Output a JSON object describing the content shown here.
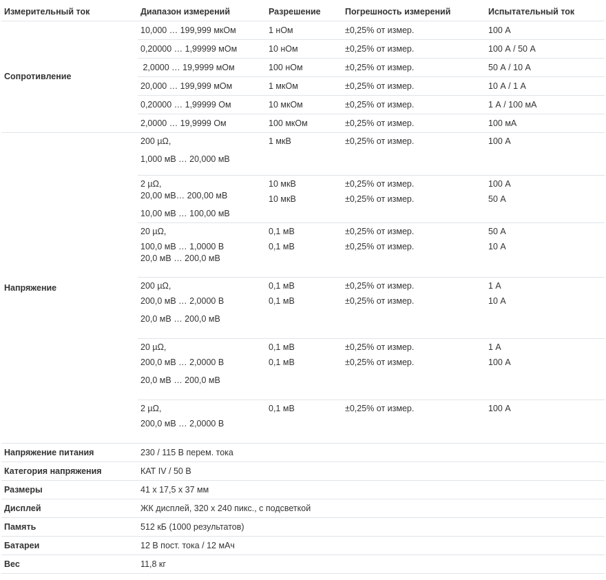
{
  "headers": {
    "quantity": "Измерительный ток",
    "range": "Диапазон измерений",
    "resolution": "Разрешение",
    "accuracy": "Погрешность измерений",
    "test_current": "Испытательный ток"
  },
  "resistance": {
    "label": "Сопротивление",
    "rows": [
      {
        "range": "10,000 … 199,999 мкОм",
        "resolution": "1 нОм",
        "accuracy": "±0,25% от измер.",
        "current": "100 А"
      },
      {
        "range": "0,20000 … 1,99999 мОм",
        "resolution": "10 нОм",
        "accuracy": "±0,25% от измер.",
        "current": "100 А / 50 А"
      },
      {
        "range": " 2,0000 … 19,9999 мОм",
        "resolution": "100 нОм",
        "accuracy": "±0,25% от измер.",
        "current": "50 А / 10 А"
      },
      {
        "range": "20,000 … 199,999 мОм",
        "resolution": "1 мкОм",
        "accuracy": "±0,25% от измер.",
        "current": "10 А / 1 А"
      },
      {
        "range": "0,20000 … 1,99999 Ом",
        "resolution": "10 мкОм",
        "accuracy": "±0,25% от измер.",
        "current": "1 А / 100 мА"
      },
      {
        "range": "2,0000 … 19,9999 Ом",
        "resolution": "100 мкОм",
        "accuracy": "±0,25% от измер.",
        "current": "100 мА"
      }
    ]
  },
  "voltage": {
    "label": "Напряжение",
    "groups": [
      {
        "range": [
          "200 µΩ,",
          "1,000 мВ … 20,000 мВ"
        ],
        "resolution": [
          "1 мкВ"
        ],
        "accuracy": [
          "±0,25% от измер."
        ],
        "current": [
          "100 А"
        ]
      },
      {
        "range": [
          "2 µΩ,",
          "20,00 мВ… 200,00 мВ",
          "10,00 мВ … 100,00 мВ"
        ],
        "resolution": [
          "10 мкВ",
          "10 мкВ"
        ],
        "accuracy": [
          "±0,25% от измер.",
          "±0,25% от измер."
        ],
        "current": [
          "100 А",
          "50 А"
        ]
      },
      {
        "range": [
          "20 µΩ,",
          "100,0 мВ … 1,0000 В",
          "20,0 мВ … 200,0 мВ"
        ],
        "resolution": [
          "0,1 мВ",
          "0,1 мВ"
        ],
        "accuracy": [
          "±0,25% от измер.",
          "±0,25% от измер."
        ],
        "current": [
          "50 А",
          "10 А"
        ]
      },
      {
        "range": [
          "200 µΩ,",
          "200,0 мВ … 2,0000 В",
          "20,0 мВ … 200,0 мВ"
        ],
        "resolution": [
          "0,1 мВ",
          "0,1 мВ"
        ],
        "accuracy": [
          "±0,25% от измер.",
          "±0,25% от измер."
        ],
        "current": [
          "1 А",
          "10 А"
        ]
      },
      {
        "range": [
          "20 µΩ,",
          "200,0 мВ … 2,0000 В",
          "20,0 мВ … 200,0 мВ"
        ],
        "resolution": [
          "0,1 мВ",
          "0,1 мВ"
        ],
        "accuracy": [
          "±0,25% от измер.",
          "±0,25% от измер."
        ],
        "current": [
          "1 А",
          "100 А"
        ]
      },
      {
        "range": [
          "2 µΩ,",
          "200,0 мВ … 2,0000 В"
        ],
        "resolution": [
          "0,1 мВ"
        ],
        "accuracy": [
          "±0,25% от измер."
        ],
        "current": [
          "100 А"
        ]
      }
    ]
  },
  "specs": [
    {
      "label": "Напряжение питания",
      "value": "230 / 115 В перем. тока"
    },
    {
      "label": "Категория напряжения",
      "value": "КАТ IV / 50 В"
    },
    {
      "label": "Размеры",
      "value": "41 x 17,5 x 37 мм"
    },
    {
      "label": "Дисплей",
      "value": "ЖК дисплей, 320 x 240 пикс., с подсветкой"
    },
    {
      "label": "Память",
      "value": "512 кБ (1000 результатов)"
    },
    {
      "label": "Батареи",
      "value": "12 В пост. тока / 12 мАч"
    },
    {
      "label": "Вес",
      "value": "11,8 кг"
    }
  ]
}
